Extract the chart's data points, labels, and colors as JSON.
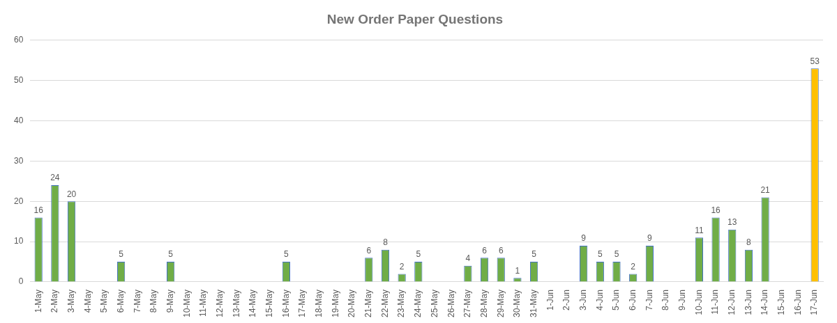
{
  "chart_data": {
    "type": "bar",
    "title": "New Order Paper Questions",
    "categories": [
      "1-May",
      "2-May",
      "3-May",
      "4-May",
      "5-May",
      "6-May",
      "7-May",
      "8-May",
      "9-May",
      "10-May",
      "11-May",
      "12-May",
      "13-May",
      "14-May",
      "15-May",
      "16-May",
      "17-May",
      "18-May",
      "19-May",
      "20-May",
      "21-May",
      "22-May",
      "23-May",
      "24-May",
      "25-May",
      "26-May",
      "27-May",
      "28-May",
      "29-May",
      "30-May",
      "31-May",
      "1-Jun",
      "2-Jun",
      "3-Jun",
      "4-Jun",
      "5-Jun",
      "6-Jun",
      "7-Jun",
      "8-Jun",
      "9-Jun",
      "10-Jun",
      "11-Jun",
      "12-Jun",
      "13-Jun",
      "14-Jun",
      "15-Jun",
      "16-Jun",
      "17-Jun"
    ],
    "values": [
      16,
      24,
      20,
      0,
      0,
      5,
      0,
      0,
      5,
      0,
      0,
      0,
      0,
      0,
      0,
      5,
      0,
      0,
      0,
      0,
      6,
      8,
      2,
      5,
      0,
      0,
      4,
      6,
      6,
      1,
      5,
      0,
      0,
      9,
      5,
      5,
      2,
      9,
      0,
      0,
      11,
      16,
      13,
      8,
      21,
      0,
      0,
      53
    ],
    "value_labels": [
      "16",
      "24",
      "20",
      null,
      null,
      "5",
      null,
      null,
      "5",
      null,
      null,
      null,
      null,
      null,
      null,
      "5",
      null,
      null,
      null,
      null,
      "6",
      "8",
      "2",
      "5",
      null,
      null,
      "4",
      "6",
      "6",
      "1",
      "5",
      null,
      null,
      "9",
      "5",
      "5",
      "2",
      "9",
      null,
      null,
      "11",
      "16",
      "13",
      "8",
      "21",
      null,
      null,
      "53"
    ],
    "colors": [
      "#70ad47",
      "#70ad47",
      "#70ad47",
      "#70ad47",
      "#70ad47",
      "#70ad47",
      "#70ad47",
      "#70ad47",
      "#70ad47",
      "#70ad47",
      "#70ad47",
      "#70ad47",
      "#70ad47",
      "#70ad47",
      "#70ad47",
      "#70ad47",
      "#70ad47",
      "#70ad47",
      "#70ad47",
      "#70ad47",
      "#70ad47",
      "#70ad47",
      "#70ad47",
      "#70ad47",
      "#70ad47",
      "#70ad47",
      "#70ad47",
      "#70ad47",
      "#70ad47",
      "#70ad47",
      "#70ad47",
      "#70ad47",
      "#70ad47",
      "#70ad47",
      "#70ad47",
      "#70ad47",
      "#70ad47",
      "#70ad47",
      "#70ad47",
      "#70ad47",
      "#70ad47",
      "#70ad47",
      "#70ad47",
      "#70ad47",
      "#70ad47",
      "#70ad47",
      "#70ad47",
      "#ffc000"
    ],
    "ylim": [
      0,
      60
    ],
    "yticks": [
      0,
      10,
      20,
      30,
      40,
      50,
      60
    ],
    "grid": "y",
    "legend": false
  }
}
